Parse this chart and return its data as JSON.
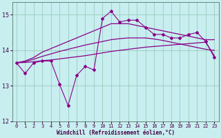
{
  "x": [
    0,
    1,
    2,
    3,
    4,
    5,
    6,
    7,
    8,
    9,
    10,
    11,
    12,
    13,
    14,
    15,
    16,
    17,
    18,
    19,
    20,
    21,
    22,
    23
  ],
  "line_jagged": [
    13.65,
    13.35,
    13.65,
    13.7,
    13.7,
    13.05,
    12.45,
    13.3,
    13.55,
    13.45,
    14.9,
    15.1,
    14.8,
    14.85,
    14.85,
    14.65,
    14.45,
    14.45,
    14.35,
    14.35,
    14.45,
    14.5,
    14.25,
    13.8
  ],
  "line_upper": [
    13.65,
    13.7,
    13.8,
    13.95,
    14.05,
    14.15,
    14.25,
    14.35,
    14.45,
    14.55,
    14.65,
    14.75,
    14.75,
    14.75,
    14.7,
    14.65,
    14.6,
    14.55,
    14.5,
    14.45,
    14.4,
    14.35,
    14.3,
    14.3
  ],
  "line_middle": [
    13.65,
    13.68,
    13.75,
    13.83,
    13.9,
    13.97,
    14.03,
    14.09,
    14.15,
    14.2,
    14.25,
    14.3,
    14.33,
    14.35,
    14.35,
    14.35,
    14.32,
    14.28,
    14.23,
    14.18,
    14.13,
    14.08,
    14.03,
    14.0
  ],
  "line_lower": [
    13.65,
    13.66,
    13.68,
    13.71,
    13.73,
    13.76,
    13.79,
    13.82,
    13.85,
    13.89,
    13.93,
    13.97,
    14.0,
    14.03,
    14.06,
    14.09,
    14.11,
    14.13,
    14.15,
    14.17,
    14.19,
    14.21,
    14.23,
    13.85
  ],
  "color": "#880088",
  "bg_color": "#c8eef0",
  "grid_color": "#99ccbb",
  "xlabel": "Windchill (Refroidissement éolien,°C)",
  "ylim": [
    12.0,
    15.35
  ],
  "xlim": [
    -0.5,
    23.5
  ],
  "yticks": [
    12,
    13,
    14,
    15
  ],
  "xticks": [
    0,
    1,
    2,
    3,
    4,
    5,
    6,
    7,
    8,
    9,
    10,
    11,
    12,
    13,
    14,
    15,
    16,
    17,
    18,
    19,
    20,
    21,
    22,
    23
  ]
}
